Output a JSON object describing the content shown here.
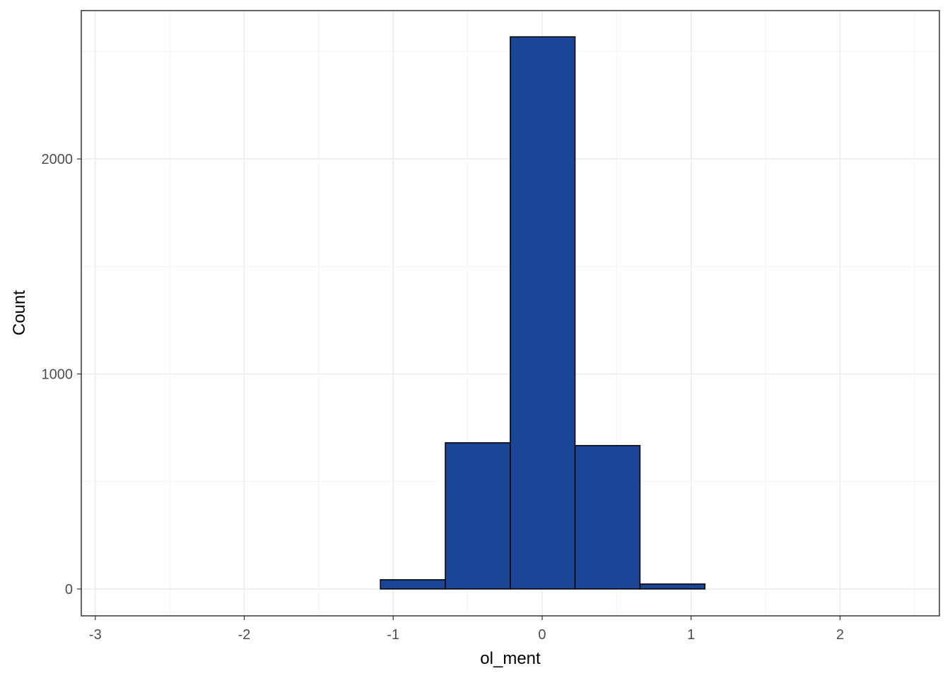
{
  "chart_data": {
    "type": "histogram",
    "x_label": "ol_ment",
    "y_label": "Count",
    "bins": [
      -2.829,
      -2.393,
      -1.958,
      -1.522,
      -1.086,
      -0.65,
      -0.214,
      0.221,
      0.657,
      1.093,
      1.529,
      1.964,
      2.4
    ],
    "values": [
      0,
      0,
      0,
      0,
      43,
      680,
      2568,
      667,
      23,
      0,
      0,
      0
    ],
    "color": "#1b4597",
    "edge_color": "#000000",
    "xlim": [
      -3.094,
      2.667
    ],
    "xticks": [
      -3,
      -2,
      -1,
      0,
      1,
      2
    ],
    "ylim": [
      -125,
      2690
    ],
    "yticks": [
      0,
      1000,
      2000
    ],
    "grid": true
  }
}
